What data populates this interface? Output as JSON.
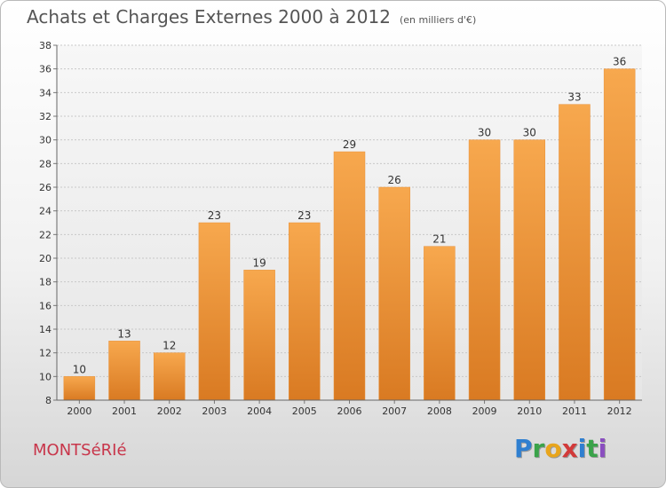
{
  "title": "Achats et Charges Externes 2000 à 2012",
  "unit_note": "(en milliers d'€)",
  "commune": "MONTSéRIé",
  "logo": {
    "letters": [
      "P",
      "r",
      "o",
      "x",
      "i",
      "t",
      "i"
    ],
    "colors": [
      "#2f7fd0",
      "#3aa34a",
      "#e8a51c",
      "#d23a3a",
      "#2f7fd0",
      "#3aa34a",
      "#8a4ec0"
    ]
  },
  "colors": {
    "bar_top": "#f7a84e",
    "bar_bottom": "#d97a22",
    "title": "#555555",
    "commune": "#c8354a"
  },
  "chart_data": {
    "type": "bar",
    "categories": [
      "2000",
      "2001",
      "2002",
      "2003",
      "2004",
      "2005",
      "2006",
      "2007",
      "2008",
      "2009",
      "2010",
      "2011",
      "2012"
    ],
    "values": [
      10,
      13,
      12,
      23,
      19,
      23,
      29,
      26,
      21,
      30,
      30,
      33,
      36
    ],
    "ylim": [
      8,
      38
    ],
    "yticks": [
      8,
      10,
      12,
      14,
      16,
      18,
      20,
      22,
      24,
      26,
      28,
      30,
      32,
      34,
      36,
      38
    ],
    "grid": true,
    "data_labels": true
  }
}
